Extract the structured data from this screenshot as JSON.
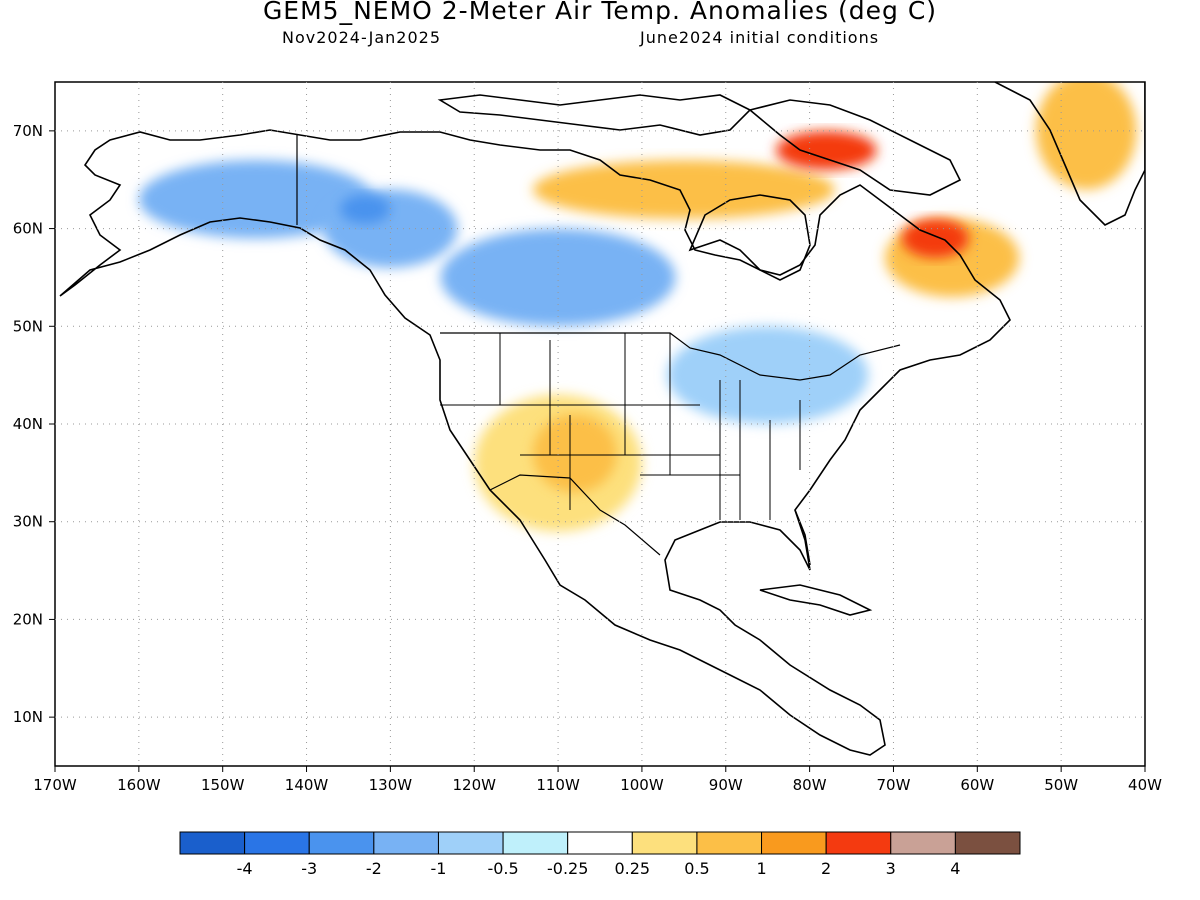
{
  "header": {
    "title": "GEM5_NEMO 2-Meter Air Temp. Anomalies (deg C)",
    "period": "Nov2024-Jan2025",
    "init": "June2024 initial conditions"
  },
  "map": {
    "lon_range": [
      -170,
      -40
    ],
    "lat_range": [
      5,
      75
    ],
    "lon_ticks": [
      "170W",
      "160W",
      "150W",
      "140W",
      "130W",
      "120W",
      "110W",
      "100W",
      "90W",
      "80W",
      "70W",
      "60W",
      "50W",
      "40W"
    ],
    "lat_ticks": [
      "10N",
      "20N",
      "30N",
      "40N",
      "50N",
      "60N",
      "70N"
    ],
    "regions": [
      {
        "name": "alaska-yukon-cold",
        "level": "-1",
        "lon": -146,
        "lat": 63,
        "rx": 14,
        "ry": 4
      },
      {
        "name": "bc-cold",
        "level": "-1",
        "lon": -130,
        "lat": 60,
        "rx": 8,
        "ry": 4
      },
      {
        "name": "yukon-core-cold",
        "level": "-2",
        "lon": -133,
        "lat": 62,
        "rx": 3,
        "ry": 1.5
      },
      {
        "name": "prairies-cold",
        "level": "-1",
        "lon": -110,
        "lat": 55,
        "rx": 14,
        "ry": 5
      },
      {
        "name": "great-lakes-cool",
        "level": "-0.5",
        "lon": -85,
        "lat": 45,
        "rx": 12,
        "ry": 5
      },
      {
        "name": "southwest-warm",
        "level": "0.5",
        "lon": -110,
        "lat": 36,
        "rx": 10,
        "ry": 7
      },
      {
        "name": "four-corners-warm",
        "level": "1",
        "lon": -108,
        "lat": 37,
        "rx": 5,
        "ry": 4
      },
      {
        "name": "canada-arctic-warm",
        "level": "1",
        "lon": -95,
        "lat": 64,
        "rx": 18,
        "ry": 3
      },
      {
        "name": "baffin-hot",
        "level": "2",
        "lon": -78,
        "lat": 68,
        "rx": 6,
        "ry": 2
      },
      {
        "name": "labrador-warm",
        "level": "1",
        "lon": -63,
        "lat": 57,
        "rx": 8,
        "ry": 4
      },
      {
        "name": "labrador-hot",
        "level": "2",
        "lon": -65,
        "lat": 59,
        "rx": 4,
        "ry": 2
      },
      {
        "name": "greenland-warm",
        "level": "1",
        "lon": -47,
        "lat": 70,
        "rx": 6,
        "ry": 6
      }
    ]
  },
  "colorbar": {
    "labels": [
      "-4",
      "-3",
      "-2",
      "-1",
      "-0.5",
      "-0.25",
      "0.25",
      "0.5",
      "1",
      "2",
      "3",
      "4"
    ],
    "colors": [
      "#1a5fcc",
      "#2a75e6",
      "#4a93ee",
      "#78b2f4",
      "#9fd0f9",
      "#bff0fb",
      "#ffffff",
      "#fde07d",
      "#fcbf47",
      "#f99a1e",
      "#f43a10",
      "#c9a196",
      "#7b5040"
    ]
  },
  "level_colors": {
    "-2": "#4a93ee",
    "-1": "#78b2f4",
    "-0.5": "#9fd0f9",
    "0.5": "#fde07d",
    "1": "#fcbf47",
    "2": "#f43a10"
  }
}
